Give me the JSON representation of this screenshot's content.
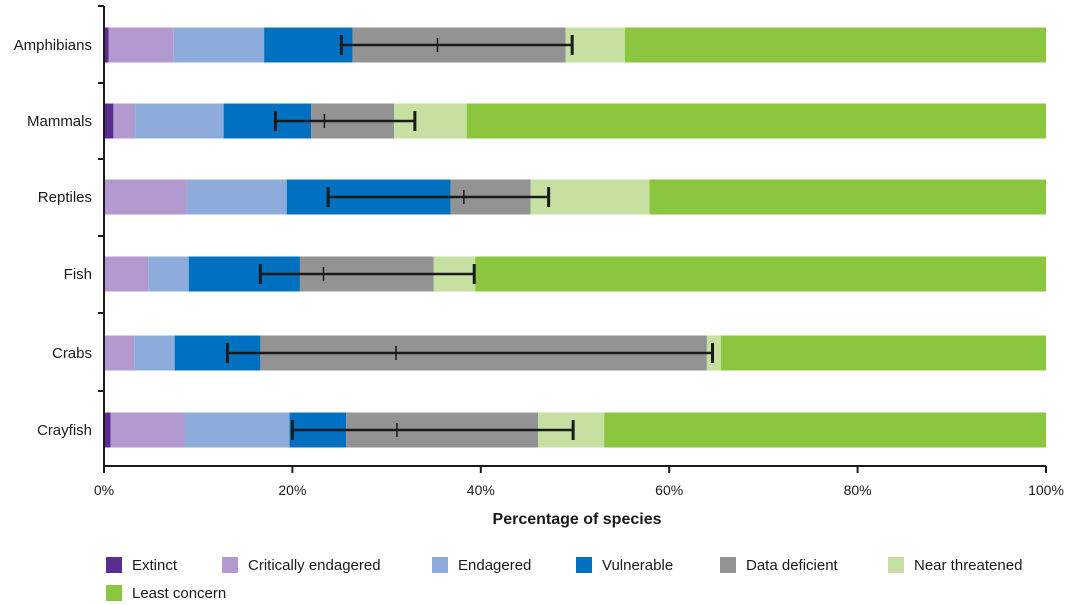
{
  "chart_data": {
    "type": "bar",
    "orientation": "horizontal",
    "stacked": true,
    "xlabel": "Percentage of species",
    "xlim": [
      0,
      100
    ],
    "x_ticks": [
      "0%",
      "20%",
      "40%",
      "60%",
      "80%",
      "100%"
    ],
    "categories": [
      "Amphibians",
      "Mammals",
      "Reptiles",
      "Fish",
      "Crabs",
      "Crayfish"
    ],
    "series": [
      {
        "name": "Extinct",
        "color": "#5b2d91",
        "values": [
          0.5,
          1.0,
          0.0,
          0.0,
          0.0,
          0.7
        ]
      },
      {
        "name": "Critically endagered",
        "color": "#b29ad0",
        "values": [
          6.9,
          2.3,
          8.8,
          4.7,
          3.2,
          7.9
        ]
      },
      {
        "name": "Endagered",
        "color": "#8dacdc",
        "values": [
          9.6,
          9.4,
          10.6,
          4.3,
          4.3,
          11.1
        ]
      },
      {
        "name": "Vulnerable",
        "color": "#0070c0",
        "values": [
          9.4,
          9.3,
          17.4,
          11.8,
          9.1,
          6.0
        ]
      },
      {
        "name": "Data deficient",
        "color": "#939393",
        "values": [
          22.6,
          8.8,
          8.5,
          14.2,
          47.4,
          20.4
        ]
      },
      {
        "name": "Near threatened",
        "color": "#c5e0a0",
        "values": [
          6.3,
          7.7,
          12.6,
          4.4,
          1.5,
          7.0
        ]
      },
      {
        "name": "Least concern",
        "color": "#8cc63f",
        "values": [
          44.7,
          61.5,
          42.1,
          60.6,
          34.5,
          46.9
        ]
      }
    ],
    "error_bars": [
      {
        "low": 25.2,
        "mid": 35.4,
        "high": 49.7
      },
      {
        "low": 18.2,
        "mid": 23.4,
        "high": 33.0
      },
      {
        "low": 23.8,
        "mid": 38.2,
        "high": 47.2
      },
      {
        "low": 16.6,
        "mid": 23.3,
        "high": 39.3
      },
      {
        "low": 13.1,
        "mid": 31.0,
        "high": 64.6
      },
      {
        "low": 20.0,
        "mid": 31.1,
        "high": 49.8
      }
    ],
    "legend_position": "bottom",
    "grid": false
  }
}
